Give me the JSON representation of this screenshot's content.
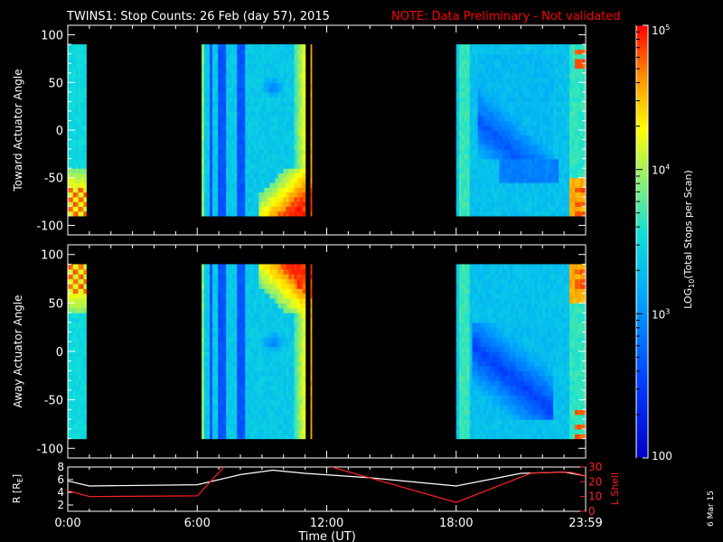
{
  "header": {
    "title": "TWINS1: Stop Counts: 26 Feb (day  57), 2015",
    "note": "NOTE: Data Preliminary - Not validated"
  },
  "footer": {
    "xlabel": "Time (UT)",
    "date_stamp": "6 Mar 15"
  },
  "colors": {
    "background": "#000000",
    "axes": "#ffffff",
    "note": "#ff0000",
    "r_line": "#ffffff",
    "lshell_line": "#ff2020"
  },
  "chart_data": [
    {
      "type": "heatmap",
      "panel": "toward",
      "ylabel": "Toward Actuator Angle",
      "ylim": [
        -110,
        110
      ],
      "yticks": [
        100,
        50,
        0,
        -50,
        -100
      ],
      "xlim_hours": [
        0,
        24
      ],
      "angle_range": [
        -90,
        90
      ],
      "data_intervals_hours": [
        [
          0.0,
          0.85
        ],
        [
          6.2,
          11.0
        ],
        [
          11.25,
          11.3
        ],
        [
          18.0,
          24.0
        ]
      ],
      "colorscale": "log10",
      "clim": [
        100,
        100000
      ]
    },
    {
      "type": "heatmap",
      "panel": "away",
      "ylabel": "Away Actuator Angle",
      "ylim": [
        -110,
        110
      ],
      "yticks": [
        100,
        50,
        0,
        -50,
        -100
      ],
      "xlim_hours": [
        0,
        24
      ],
      "angle_range": [
        -90,
        90
      ],
      "data_intervals_hours": [
        [
          0.0,
          0.85
        ],
        [
          6.2,
          11.0
        ],
        [
          11.25,
          11.3
        ],
        [
          18.0,
          24.0
        ]
      ],
      "colorscale": "log10",
      "clim": [
        100,
        100000
      ]
    },
    {
      "type": "line",
      "panel": "ephemeris",
      "ylabel_left": "R [R",
      "ylabel_left_sub": "E",
      "ylabel_left_end": "]",
      "ylabel_right": "L Shell",
      "ylim_left": [
        1,
        8
      ],
      "ylim_right": [
        0,
        30
      ],
      "yticks_left": [
        2,
        4,
        6,
        8
      ],
      "yticks_right": [
        0,
        10,
        20,
        30
      ],
      "xticks": [
        "0:00",
        "6:00",
        "12:00",
        "18:00",
        "23:59"
      ],
      "xtick_hours": [
        0,
        6,
        12,
        18,
        24
      ],
      "series": [
        {
          "name": "R [R_E]",
          "axis": "left",
          "x": [
            0,
            1,
            6,
            8,
            9.5,
            11,
            14,
            18,
            21,
            23,
            24
          ],
          "y": [
            5.8,
            5.0,
            5.2,
            6.8,
            7.5,
            7.0,
            6.3,
            5.0,
            7.0,
            7.2,
            6.6
          ]
        },
        {
          "name": "L Shell",
          "axis": "right",
          "x": [
            0,
            1,
            6,
            7.3,
            12,
            18,
            21.5,
            23.3,
            24
          ],
          "y": [
            14.0,
            10.0,
            10.5,
            31.0,
            31.0,
            6.0,
            26.0,
            26.5,
            24.0
          ]
        }
      ]
    },
    {
      "type": "colorbar",
      "label": "LOG10(Total Stops per Scan)",
      "label_prefix": "LOG",
      "label_sub": "10",
      "label_suffix": "(Total Stops per Scan)",
      "scale": "log10",
      "range": [
        100,
        100000
      ],
      "tick_values": [
        100,
        1000,
        10000,
        100000
      ],
      "tick_labels": [
        {
          "base": "100",
          "exp": ""
        },
        {
          "base": "10",
          "exp": "3"
        },
        {
          "base": "10",
          "exp": "4"
        },
        {
          "base": "10",
          "exp": "5"
        }
      ]
    }
  ]
}
